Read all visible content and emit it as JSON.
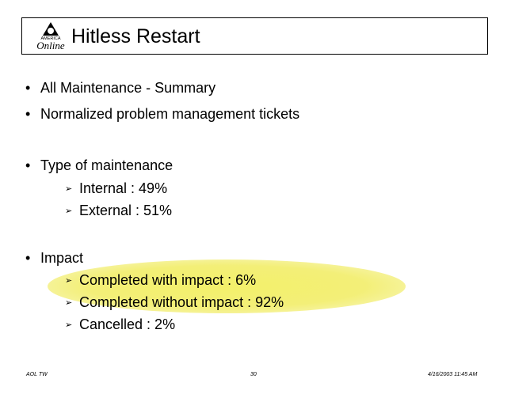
{
  "header": {
    "title": "Hitless Restart",
    "logo": {
      "line1": "AMERICA",
      "line2": "Online"
    }
  },
  "bullets": [
    {
      "text": "All Maintenance - Summary"
    },
    {
      "text": "Normalized problem management tickets"
    },
    {
      "text": "Type of maintenance",
      "items": [
        "Internal  : 49%",
        "External : 51%"
      ]
    },
    {
      "text": "Impact",
      "items": [
        "Completed with impact : 6%",
        "Completed without impact : 92%",
        "Cancelled : 2%"
      ]
    }
  ],
  "footer": {
    "left": "AOL TW",
    "page": "30",
    "right": "4/16/2003 11:45 AM"
  },
  "colors": {
    "highlight": "#f3f06a",
    "text": "#000000"
  },
  "icons": {
    "bullet": "•",
    "sub_bullet": "➢"
  }
}
